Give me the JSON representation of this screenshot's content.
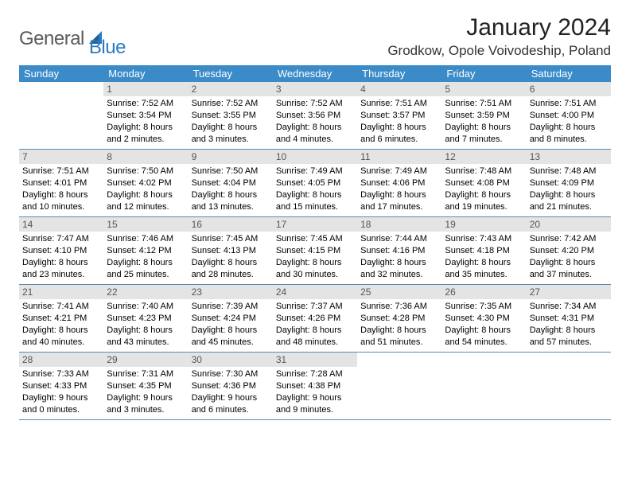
{
  "brand": {
    "part1": "General",
    "part2": "Blue"
  },
  "title": "January 2024",
  "location": "Grodkow, Opole Voivodeship, Poland",
  "colors": {
    "header_bg": "#3b8bc9",
    "header_text": "#ffffff",
    "daynum_bg": "#e4e4e4",
    "daynum_text": "#555555",
    "row_border": "#5b8bb0",
    "logo_gray": "#5a5a5a",
    "logo_blue": "#2b7bbf"
  },
  "weekdays": [
    "Sunday",
    "Monday",
    "Tuesday",
    "Wednesday",
    "Thursday",
    "Friday",
    "Saturday"
  ],
  "weeks": [
    [
      {
        "num": "",
        "lines": []
      },
      {
        "num": "1",
        "lines": [
          "Sunrise: 7:52 AM",
          "Sunset: 3:54 PM",
          "Daylight: 8 hours",
          "and 2 minutes."
        ]
      },
      {
        "num": "2",
        "lines": [
          "Sunrise: 7:52 AM",
          "Sunset: 3:55 PM",
          "Daylight: 8 hours",
          "and 3 minutes."
        ]
      },
      {
        "num": "3",
        "lines": [
          "Sunrise: 7:52 AM",
          "Sunset: 3:56 PM",
          "Daylight: 8 hours",
          "and 4 minutes."
        ]
      },
      {
        "num": "4",
        "lines": [
          "Sunrise: 7:51 AM",
          "Sunset: 3:57 PM",
          "Daylight: 8 hours",
          "and 6 minutes."
        ]
      },
      {
        "num": "5",
        "lines": [
          "Sunrise: 7:51 AM",
          "Sunset: 3:59 PM",
          "Daylight: 8 hours",
          "and 7 minutes."
        ]
      },
      {
        "num": "6",
        "lines": [
          "Sunrise: 7:51 AM",
          "Sunset: 4:00 PM",
          "Daylight: 8 hours",
          "and 8 minutes."
        ]
      }
    ],
    [
      {
        "num": "7",
        "lines": [
          "Sunrise: 7:51 AM",
          "Sunset: 4:01 PM",
          "Daylight: 8 hours",
          "and 10 minutes."
        ]
      },
      {
        "num": "8",
        "lines": [
          "Sunrise: 7:50 AM",
          "Sunset: 4:02 PM",
          "Daylight: 8 hours",
          "and 12 minutes."
        ]
      },
      {
        "num": "9",
        "lines": [
          "Sunrise: 7:50 AM",
          "Sunset: 4:04 PM",
          "Daylight: 8 hours",
          "and 13 minutes."
        ]
      },
      {
        "num": "10",
        "lines": [
          "Sunrise: 7:49 AM",
          "Sunset: 4:05 PM",
          "Daylight: 8 hours",
          "and 15 minutes."
        ]
      },
      {
        "num": "11",
        "lines": [
          "Sunrise: 7:49 AM",
          "Sunset: 4:06 PM",
          "Daylight: 8 hours",
          "and 17 minutes."
        ]
      },
      {
        "num": "12",
        "lines": [
          "Sunrise: 7:48 AM",
          "Sunset: 4:08 PM",
          "Daylight: 8 hours",
          "and 19 minutes."
        ]
      },
      {
        "num": "13",
        "lines": [
          "Sunrise: 7:48 AM",
          "Sunset: 4:09 PM",
          "Daylight: 8 hours",
          "and 21 minutes."
        ]
      }
    ],
    [
      {
        "num": "14",
        "lines": [
          "Sunrise: 7:47 AM",
          "Sunset: 4:10 PM",
          "Daylight: 8 hours",
          "and 23 minutes."
        ]
      },
      {
        "num": "15",
        "lines": [
          "Sunrise: 7:46 AM",
          "Sunset: 4:12 PM",
          "Daylight: 8 hours",
          "and 25 minutes."
        ]
      },
      {
        "num": "16",
        "lines": [
          "Sunrise: 7:45 AM",
          "Sunset: 4:13 PM",
          "Daylight: 8 hours",
          "and 28 minutes."
        ]
      },
      {
        "num": "17",
        "lines": [
          "Sunrise: 7:45 AM",
          "Sunset: 4:15 PM",
          "Daylight: 8 hours",
          "and 30 minutes."
        ]
      },
      {
        "num": "18",
        "lines": [
          "Sunrise: 7:44 AM",
          "Sunset: 4:16 PM",
          "Daylight: 8 hours",
          "and 32 minutes."
        ]
      },
      {
        "num": "19",
        "lines": [
          "Sunrise: 7:43 AM",
          "Sunset: 4:18 PM",
          "Daylight: 8 hours",
          "and 35 minutes."
        ]
      },
      {
        "num": "20",
        "lines": [
          "Sunrise: 7:42 AM",
          "Sunset: 4:20 PM",
          "Daylight: 8 hours",
          "and 37 minutes."
        ]
      }
    ],
    [
      {
        "num": "21",
        "lines": [
          "Sunrise: 7:41 AM",
          "Sunset: 4:21 PM",
          "Daylight: 8 hours",
          "and 40 minutes."
        ]
      },
      {
        "num": "22",
        "lines": [
          "Sunrise: 7:40 AM",
          "Sunset: 4:23 PM",
          "Daylight: 8 hours",
          "and 43 minutes."
        ]
      },
      {
        "num": "23",
        "lines": [
          "Sunrise: 7:39 AM",
          "Sunset: 4:24 PM",
          "Daylight: 8 hours",
          "and 45 minutes."
        ]
      },
      {
        "num": "24",
        "lines": [
          "Sunrise: 7:37 AM",
          "Sunset: 4:26 PM",
          "Daylight: 8 hours",
          "and 48 minutes."
        ]
      },
      {
        "num": "25",
        "lines": [
          "Sunrise: 7:36 AM",
          "Sunset: 4:28 PM",
          "Daylight: 8 hours",
          "and 51 minutes."
        ]
      },
      {
        "num": "26",
        "lines": [
          "Sunrise: 7:35 AM",
          "Sunset: 4:30 PM",
          "Daylight: 8 hours",
          "and 54 minutes."
        ]
      },
      {
        "num": "27",
        "lines": [
          "Sunrise: 7:34 AM",
          "Sunset: 4:31 PM",
          "Daylight: 8 hours",
          "and 57 minutes."
        ]
      }
    ],
    [
      {
        "num": "28",
        "lines": [
          "Sunrise: 7:33 AM",
          "Sunset: 4:33 PM",
          "Daylight: 9 hours",
          "and 0 minutes."
        ]
      },
      {
        "num": "29",
        "lines": [
          "Sunrise: 7:31 AM",
          "Sunset: 4:35 PM",
          "Daylight: 9 hours",
          "and 3 minutes."
        ]
      },
      {
        "num": "30",
        "lines": [
          "Sunrise: 7:30 AM",
          "Sunset: 4:36 PM",
          "Daylight: 9 hours",
          "and 6 minutes."
        ]
      },
      {
        "num": "31",
        "lines": [
          "Sunrise: 7:28 AM",
          "Sunset: 4:38 PM",
          "Daylight: 9 hours",
          "and 9 minutes."
        ]
      },
      {
        "num": "",
        "lines": []
      },
      {
        "num": "",
        "lines": []
      },
      {
        "num": "",
        "lines": []
      }
    ]
  ]
}
